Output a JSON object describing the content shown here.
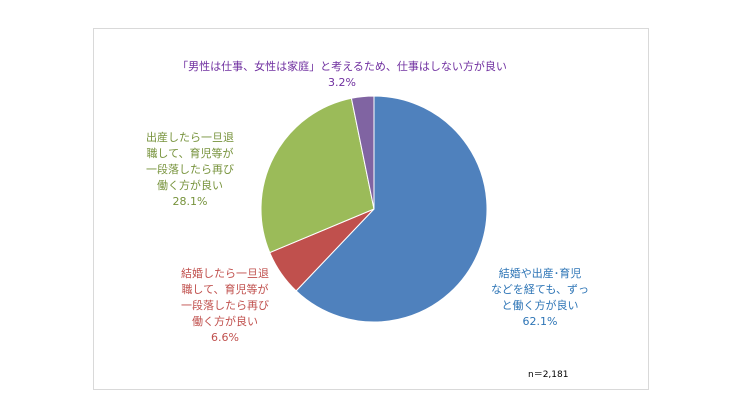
{
  "chart_data": {
    "type": "pie",
    "title": "",
    "slices": [
      {
        "name": "結婚や出産・育児などを経ても、ずっと働く方が良い",
        "label_lines": [
          "結婚や出産･育児",
          "などを経ても、ずっ",
          "と働く方が良い"
        ],
        "value": 62.1,
        "value_label": "62.1%",
        "color": "#4f81bd"
      },
      {
        "name": "結婚したら一旦退職して、育児等が一段落したら再び働く方が良い",
        "label_lines": [
          "結婚したら一旦退",
          "職して、育児等が",
          "一段落したら再び",
          "働く方が良い"
        ],
        "value": 6.6,
        "value_label": "6.6%",
        "color": "#c0504d"
      },
      {
        "name": "出産したら一旦退職して、育児等が一段落したら再び働く方が良い",
        "label_lines": [
          "出産したら一旦退",
          "職して、育児等が",
          "一段落したら再び",
          "働く方が良い"
        ],
        "value": 28.1,
        "value_label": "28.1%",
        "color": "#9bbb59"
      },
      {
        "name": "「男性は仕事、女性は家庭」と考えるため、仕事はしない方が良い",
        "label_lines": [
          "「男性は仕事、女性は家庭」と考えるため、仕事はしない方が良い"
        ],
        "value": 3.2,
        "value_label": "3.2%",
        "color": "#8064a2"
      }
    ],
    "note": "n＝2,181"
  }
}
